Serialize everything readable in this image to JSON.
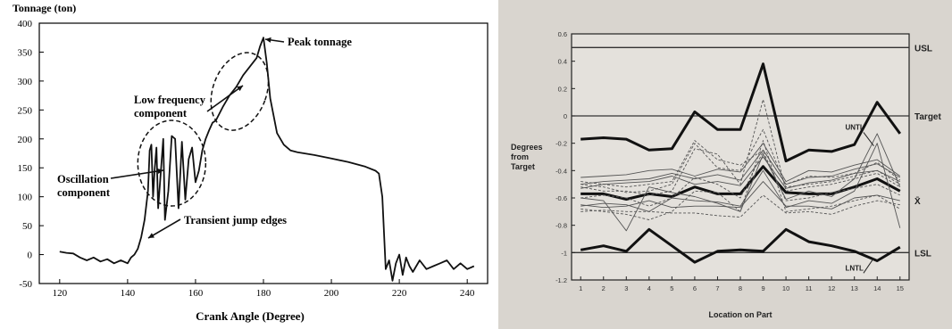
{
  "chart_data": [
    {
      "type": "line",
      "title": "",
      "ylabel": "Tonnage (ton)",
      "xlabel": "Crank Angle (Degree)",
      "xlim": [
        114,
        246
      ],
      "ylim": [
        -50,
        400
      ],
      "x_ticks": [
        120,
        140,
        160,
        180,
        200,
        220,
        240
      ],
      "y_ticks": [
        -50,
        0,
        50,
        100,
        150,
        200,
        250,
        300,
        350,
        400
      ],
      "grid": false,
      "legend": "none",
      "series": [
        {
          "x": [
            120,
            122,
            124,
            126,
            128,
            130,
            132,
            134,
            136,
            138,
            140,
            141,
            142,
            143,
            144,
            145,
            146,
            146.5,
            147,
            147.5,
            148,
            148.5,
            149,
            150,
            150.5,
            151,
            152,
            153,
            154,
            155,
            156,
            157,
            158,
            159,
            160,
            161,
            162,
            163,
            164,
            165,
            166,
            168,
            170,
            172,
            174,
            176,
            178,
            179,
            180,
            181,
            182,
            183,
            184,
            186,
            188,
            190,
            195,
            200,
            205,
            210,
            213,
            214,
            215,
            216,
            217,
            218,
            219,
            220,
            221,
            222,
            223,
            224,
            226,
            228,
            230,
            232,
            234,
            236,
            238,
            240,
            242
          ],
          "y": [
            5,
            3,
            2,
            -5,
            -10,
            -5,
            -12,
            -8,
            -15,
            -10,
            -15,
            -5,
            0,
            10,
            30,
            60,
            110,
            180,
            190,
            100,
            150,
            185,
            80,
            160,
            200,
            60,
            110,
            205,
            200,
            80,
            195,
            95,
            165,
            185,
            125,
            145,
            180,
            200,
            215,
            228,
            232,
            255,
            275,
            290,
            310,
            325,
            340,
            360,
            375,
            330,
            270,
            240,
            210,
            190,
            180,
            177,
            172,
            166,
            160,
            152,
            145,
            140,
            100,
            -25,
            -10,
            -45,
            -15,
            0,
            -35,
            -5,
            -20,
            -30,
            -10,
            -25,
            -20,
            -15,
            -10,
            -25,
            -15,
            -25,
            -20
          ]
        }
      ],
      "annotations": [
        {
          "text": "Peak tonnage",
          "x": 180,
          "y": 375
        },
        {
          "text": "Low frequency component",
          "x": 172,
          "y": 285
        },
        {
          "text": "Oscillation component",
          "x": 147,
          "y": 150
        },
        {
          "text": "Transient jump edges",
          "x": 143,
          "y": 15
        }
      ]
    },
    {
      "type": "line",
      "title": "",
      "ylabel": "Degrees from Target",
      "xlabel": "Location on Part",
      "xlim": [
        0.6,
        15.4
      ],
      "ylim": [
        -1.2,
        0.6
      ],
      "categories": [
        "1",
        "2",
        "3",
        "4",
        "5",
        "6",
        "7",
        "8",
        "9",
        "10",
        "11",
        "12",
        "13",
        "14",
        "15"
      ],
      "y_ticks": [
        -1.2,
        -1,
        -0.8,
        -0.6,
        -0.4,
        -0.2,
        0,
        0.2,
        0.4,
        0.6
      ],
      "y_tick_labels": [
        "-1.2",
        "-1",
        "-0.8",
        "-0.6",
        "-0.4",
        "-0.2",
        "0",
        "0.2",
        "0.4",
        "0.6"
      ],
      "grid": false,
      "reference_lines": [
        {
          "label": "USL",
          "y": 0.5
        },
        {
          "label": "Target",
          "y": 0
        },
        {
          "label": "LSL",
          "y": -1
        }
      ],
      "right_labels": [
        "USL",
        "Target",
        "X̄",
        "LSL"
      ],
      "series": [
        {
          "name": "UNTL",
          "values": [
            -0.17,
            -0.16,
            -0.17,
            -0.25,
            -0.24,
            0.03,
            -0.1,
            -0.1,
            0.38,
            -0.33,
            -0.25,
            -0.26,
            -0.21,
            0.1,
            -0.13
          ]
        },
        {
          "name": "LNTL",
          "values": [
            -0.98,
            -0.95,
            -0.99,
            -0.83,
            -0.95,
            -1.07,
            -0.99,
            -0.98,
            -0.99,
            -0.83,
            -0.92,
            -0.95,
            -0.99,
            -1.06,
            -0.96
          ]
        },
        {
          "name": "X̄",
          "values": [
            -0.57,
            -0.57,
            -0.61,
            -0.57,
            -0.59,
            -0.52,
            -0.57,
            -0.57,
            -0.37,
            -0.56,
            -0.57,
            -0.57,
            -0.52,
            -0.46,
            -0.55
          ]
        },
        {
          "values": [
            -0.45,
            -0.44,
            -0.43,
            -0.4,
            -0.39,
            -0.44,
            -0.39,
            -0.41,
            -0.2,
            -0.48,
            -0.4,
            -0.41,
            -0.36,
            -0.32,
            -0.44
          ]
        },
        {
          "values": [
            -0.5,
            -0.48,
            -0.47,
            -0.46,
            -0.42,
            -0.46,
            -0.43,
            -0.47,
            -0.25,
            -0.5,
            -0.45,
            -0.44,
            -0.39,
            -0.35,
            -0.45
          ]
        },
        {
          "values": [
            -0.53,
            -0.5,
            -0.49,
            -0.48,
            -0.44,
            -0.5,
            -0.48,
            -0.51,
            -0.3,
            -0.53,
            -0.49,
            -0.47,
            -0.42,
            -0.4,
            -0.48
          ]
        },
        {
          "values": [
            -0.6,
            -0.62,
            -0.84,
            -0.52,
            -0.56,
            -0.59,
            -0.64,
            -0.7,
            -0.28,
            -0.61,
            -0.55,
            -0.59,
            -0.46,
            -0.13,
            -0.52
          ]
        },
        {
          "values": [
            -0.66,
            -0.64,
            -0.65,
            -0.7,
            -0.6,
            -0.62,
            -0.63,
            -0.66,
            -0.4,
            -0.67,
            -0.62,
            -0.64,
            -0.55,
            -0.2,
            -0.82
          ]
        },
        {
          "values": [
            -0.65,
            -0.67,
            -0.66,
            -0.62,
            -0.67,
            -0.66,
            -0.66,
            -0.67,
            -0.48,
            -0.66,
            -0.66,
            -0.68,
            -0.6,
            -0.58,
            -0.62
          ]
        },
        {
          "values": [
            -0.7,
            -0.69,
            -0.7,
            -0.7,
            -0.71,
            -0.71,
            -0.73,
            -0.74,
            -0.58,
            -0.71,
            -0.7,
            -0.72,
            -0.66,
            -0.62,
            -0.65
          ]
        },
        {
          "values": [
            -0.48,
            -0.5,
            -0.52,
            -0.5,
            -0.48,
            -0.18,
            -0.32,
            -0.36,
            -0.25,
            -0.5,
            -0.44,
            -0.45,
            -0.42,
            -0.34,
            -0.47
          ]
        },
        {
          "values": [
            -0.5,
            -0.52,
            -0.56,
            -0.55,
            -0.5,
            -0.2,
            -0.38,
            -0.4,
            -0.1,
            -0.52,
            -0.5,
            -0.48,
            -0.44,
            -0.4,
            -0.5
          ]
        },
        {
          "values": [
            -0.52,
            -0.55,
            -0.55,
            -0.58,
            -0.55,
            -0.24,
            -0.28,
            -0.5,
            0.12,
            -0.55,
            -0.52,
            -0.5,
            -0.46,
            -0.42,
            -0.52
          ]
        },
        {
          "values": [
            -0.6,
            -0.58,
            -0.6,
            -0.66,
            -0.6,
            -0.45,
            -0.5,
            -0.6,
            -0.26,
            -0.62,
            -0.6,
            -0.56,
            -0.53,
            -0.5,
            -0.58
          ]
        },
        {
          "values": [
            -0.68,
            -0.7,
            -0.72,
            -0.76,
            -0.7,
            -0.55,
            -0.56,
            -0.7,
            -0.18,
            -0.7,
            -0.68,
            -0.66,
            -0.62,
            -0.58,
            -0.68
          ]
        }
      ],
      "annotations": [
        {
          "text": "UNTL",
          "x": 12.6,
          "y": -0.1
        },
        {
          "text": "LNTL",
          "x": 12.6,
          "y": -1.13
        }
      ]
    }
  ]
}
